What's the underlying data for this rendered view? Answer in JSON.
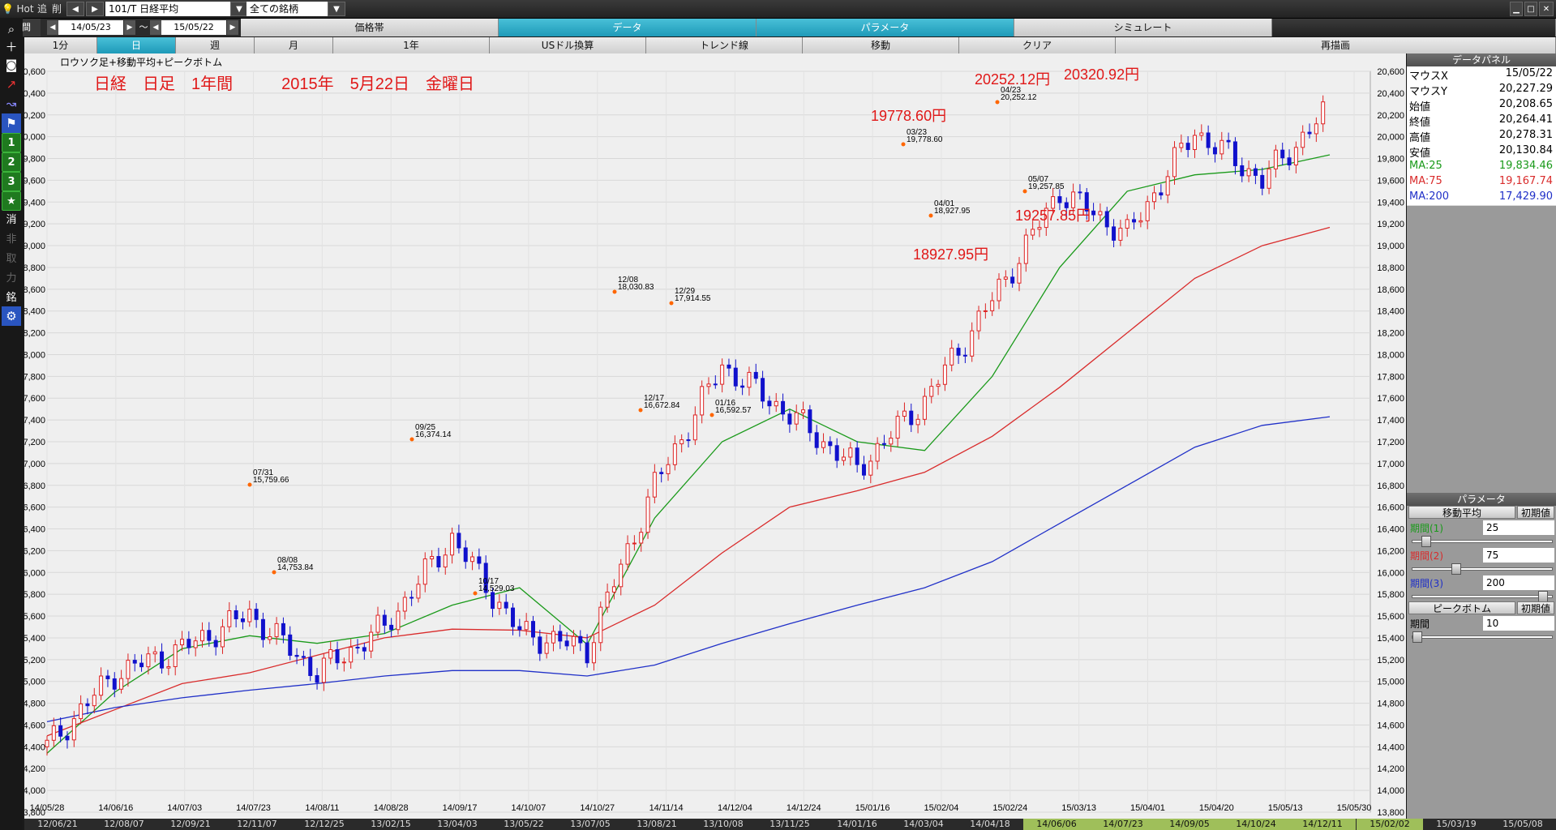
{
  "topbar": {
    "hot": "Hot",
    "add": "追",
    "del": "削",
    "symbol": "101/T 日経平均",
    "universe": "全ての銘柄",
    "window_controls": [
      "▁",
      "□",
      "✕"
    ]
  },
  "row2": {
    "period_label": "期間",
    "start_date": "14/05/23",
    "tilde": "～",
    "end_date": "15/05/22",
    "tabs": [
      {
        "label": "価格帯",
        "active": false
      },
      {
        "label": "データ",
        "active": true
      },
      {
        "label": "パラメータ",
        "active": true
      },
      {
        "label": "シミュレート",
        "active": false
      }
    ]
  },
  "row3": {
    "tabs": [
      {
        "label": "1分",
        "active": false
      },
      {
        "label": "日",
        "active": true
      },
      {
        "label": "週",
        "active": false
      },
      {
        "label": "月",
        "active": false
      },
      {
        "label": "1年",
        "active": false
      },
      {
        "label": "USドル換算",
        "active": false
      },
      {
        "label": "トレンド線",
        "active": false
      },
      {
        "label": "移動",
        "active": false
      },
      {
        "label": "クリア",
        "active": false
      },
      {
        "label": "再描画",
        "active": false
      }
    ]
  },
  "sidebar": {
    "items": [
      "search-icon",
      "plus-icon",
      "camera-icon",
      "line-chart-icon",
      "area-chart-icon",
      "flag-icon",
      "1",
      "2",
      "3",
      "★",
      "消",
      "非",
      "取",
      "力",
      "銘",
      "gear-icon"
    ]
  },
  "chart": {
    "title": "ロウソク足+移動平均+ピークボトム",
    "annotation": "日経　日足　1年間　　　2015年　5月22日　金曜日",
    "red_labels": [
      "20252.12円",
      "20320.92円",
      "19778.60円",
      "19257.85円",
      "18927.95円"
    ],
    "peaks": [
      {
        "date": "07/31",
        "value": "15,759.66"
      },
      {
        "date": "08/08",
        "value": "14,753.84"
      },
      {
        "date": "09/25",
        "value": "16,374.14"
      },
      {
        "date": "10/17",
        "value": "14,529.03"
      },
      {
        "date": "12/08",
        "value": "18,030.83"
      },
      {
        "date": "12/17",
        "value": "16,672.84"
      },
      {
        "date": "12/29",
        "value": "17,914.55"
      },
      {
        "date": "01/16",
        "value": "16,592.57"
      },
      {
        "date": "03/23",
        "value": "19,778.60"
      },
      {
        "date": "04/01",
        "value": "18,927.95"
      },
      {
        "date": "04/23",
        "value": "20,252.12"
      },
      {
        "date": "05/07",
        "value": "19,257.85"
      }
    ],
    "xticks": [
      "14/05/28",
      "14/06/16",
      "14/07/03",
      "14/07/23",
      "14/08/11",
      "14/08/28",
      "14/09/17",
      "14/10/07",
      "14/10/27",
      "14/11/14",
      "14/12/04",
      "14/12/24",
      "15/01/16",
      "15/02/04",
      "15/02/24",
      "15/03/13",
      "15/04/01",
      "15/04/20",
      "15/05/13",
      "15/05/30"
    ]
  },
  "chart_data": {
    "type": "line",
    "ylim": [
      13800,
      20600
    ],
    "yticks": [
      "20,600",
      "20,400",
      "20,200",
      "20,000",
      "19,800",
      "19,600",
      "19,400",
      "19,200",
      "19,000",
      "18,800",
      "18,600",
      "18,400",
      "18,200",
      "18,000",
      "17,800",
      "17,600",
      "17,400",
      "17,200",
      "17,000",
      "16,800",
      "16,600",
      "16,400",
      "16,200",
      "16,000",
      "15,800",
      "15,600",
      "15,400",
      "15,200",
      "15,000",
      "14,800",
      "14,600",
      "14,400",
      "14,200",
      "14,000",
      "13,800"
    ],
    "x": [
      "14/05/28",
      "14/06/16",
      "14/07/03",
      "14/07/23",
      "14/08/11",
      "14/08/28",
      "14/09/17",
      "14/10/07",
      "14/10/27",
      "14/11/14",
      "14/12/04",
      "14/12/24",
      "15/01/16",
      "15/02/04",
      "15/02/24",
      "15/03/13",
      "15/04/01",
      "15/04/20",
      "15/05/13",
      "15/05/22"
    ],
    "series": [
      {
        "name": "MA:25",
        "color": "#1a9a1a",
        "values": [
          14340,
          14900,
          15300,
          15420,
          15350,
          15440,
          15700,
          15860,
          15340,
          16500,
          17200,
          17500,
          17200,
          17120,
          17800,
          18800,
          19500,
          19650,
          19700,
          19834
        ]
      },
      {
        "name": "MA:75",
        "color": "#d92b2b",
        "values": [
          14500,
          14740,
          14980,
          15080,
          15240,
          15400,
          15480,
          15470,
          15400,
          15700,
          16180,
          16600,
          16750,
          16920,
          17250,
          17700,
          18200,
          18700,
          19000,
          19168
        ]
      },
      {
        "name": "MA:200",
        "color": "#2030c8",
        "values": [
          14630,
          14760,
          14850,
          14920,
          14980,
          15050,
          15100,
          15100,
          15050,
          15150,
          15350,
          15530,
          15700,
          15860,
          16100,
          16450,
          16800,
          17150,
          17350,
          17430
        ]
      },
      {
        "name": "Close",
        "color": "#c22",
        "values": [
          14400,
          15070,
          15300,
          15620,
          15080,
          15500,
          16320,
          15450,
          15300,
          16800,
          17900,
          17450,
          16950,
          17580,
          18500,
          19500,
          19100,
          20050,
          19600,
          20264
        ]
      }
    ]
  },
  "panel": {
    "data_header": "データパネル",
    "rows": [
      {
        "label": "マウスX",
        "value": "15/05/22",
        "color": "#000"
      },
      {
        "label": "マウスY",
        "value": "20,227.29",
        "color": "#000"
      },
      {
        "label": "始値",
        "value": "20,208.65",
        "color": "#000"
      },
      {
        "label": "終値",
        "value": "20,264.41",
        "color": "#000"
      },
      {
        "label": "高値",
        "value": "20,278.31",
        "color": "#000"
      },
      {
        "label": "安値",
        "value": "20,130.84",
        "color": "#000"
      },
      {
        "label": "MA:25",
        "value": "19,834.46",
        "color": "#1a9a1a"
      },
      {
        "label": "MA:75",
        "value": "19,167.74",
        "color": "#d92b2b"
      },
      {
        "label": "MA:200",
        "value": "17,429.90",
        "color": "#2030c8"
      }
    ],
    "param_header": "パラメータ",
    "ma_tab": "移動平均",
    "reset": "初期値",
    "params": [
      {
        "label": "期間(1)",
        "value": "25",
        "color": "#1a9a1a",
        "slider": 0.07
      },
      {
        "label": "期間(2)",
        "value": "75",
        "color": "#d92b2b",
        "slider": 0.3
      },
      {
        "label": "期間(3)",
        "value": "200",
        "color": "#2030c8",
        "slider": 0.97
      }
    ],
    "peak_tab": "ピークボトム",
    "peak_period_label": "期間",
    "peak_period_value": "10"
  },
  "bottombar": {
    "labels": [
      "12/06/21",
      "12/08/07",
      "12/09/21",
      "12/11/07",
      "12/12/25",
      "13/02/15",
      "13/04/03",
      "13/05/22",
      "13/07/05",
      "13/08/21",
      "13/10/08",
      "13/11/25",
      "14/01/16",
      "14/03/04",
      "14/04/18",
      "14/06/06",
      "14/07/23",
      "14/09/05",
      "14/10/24",
      "14/12/11",
      "15/02/02",
      "15/03/19",
      "15/05/08"
    ]
  }
}
